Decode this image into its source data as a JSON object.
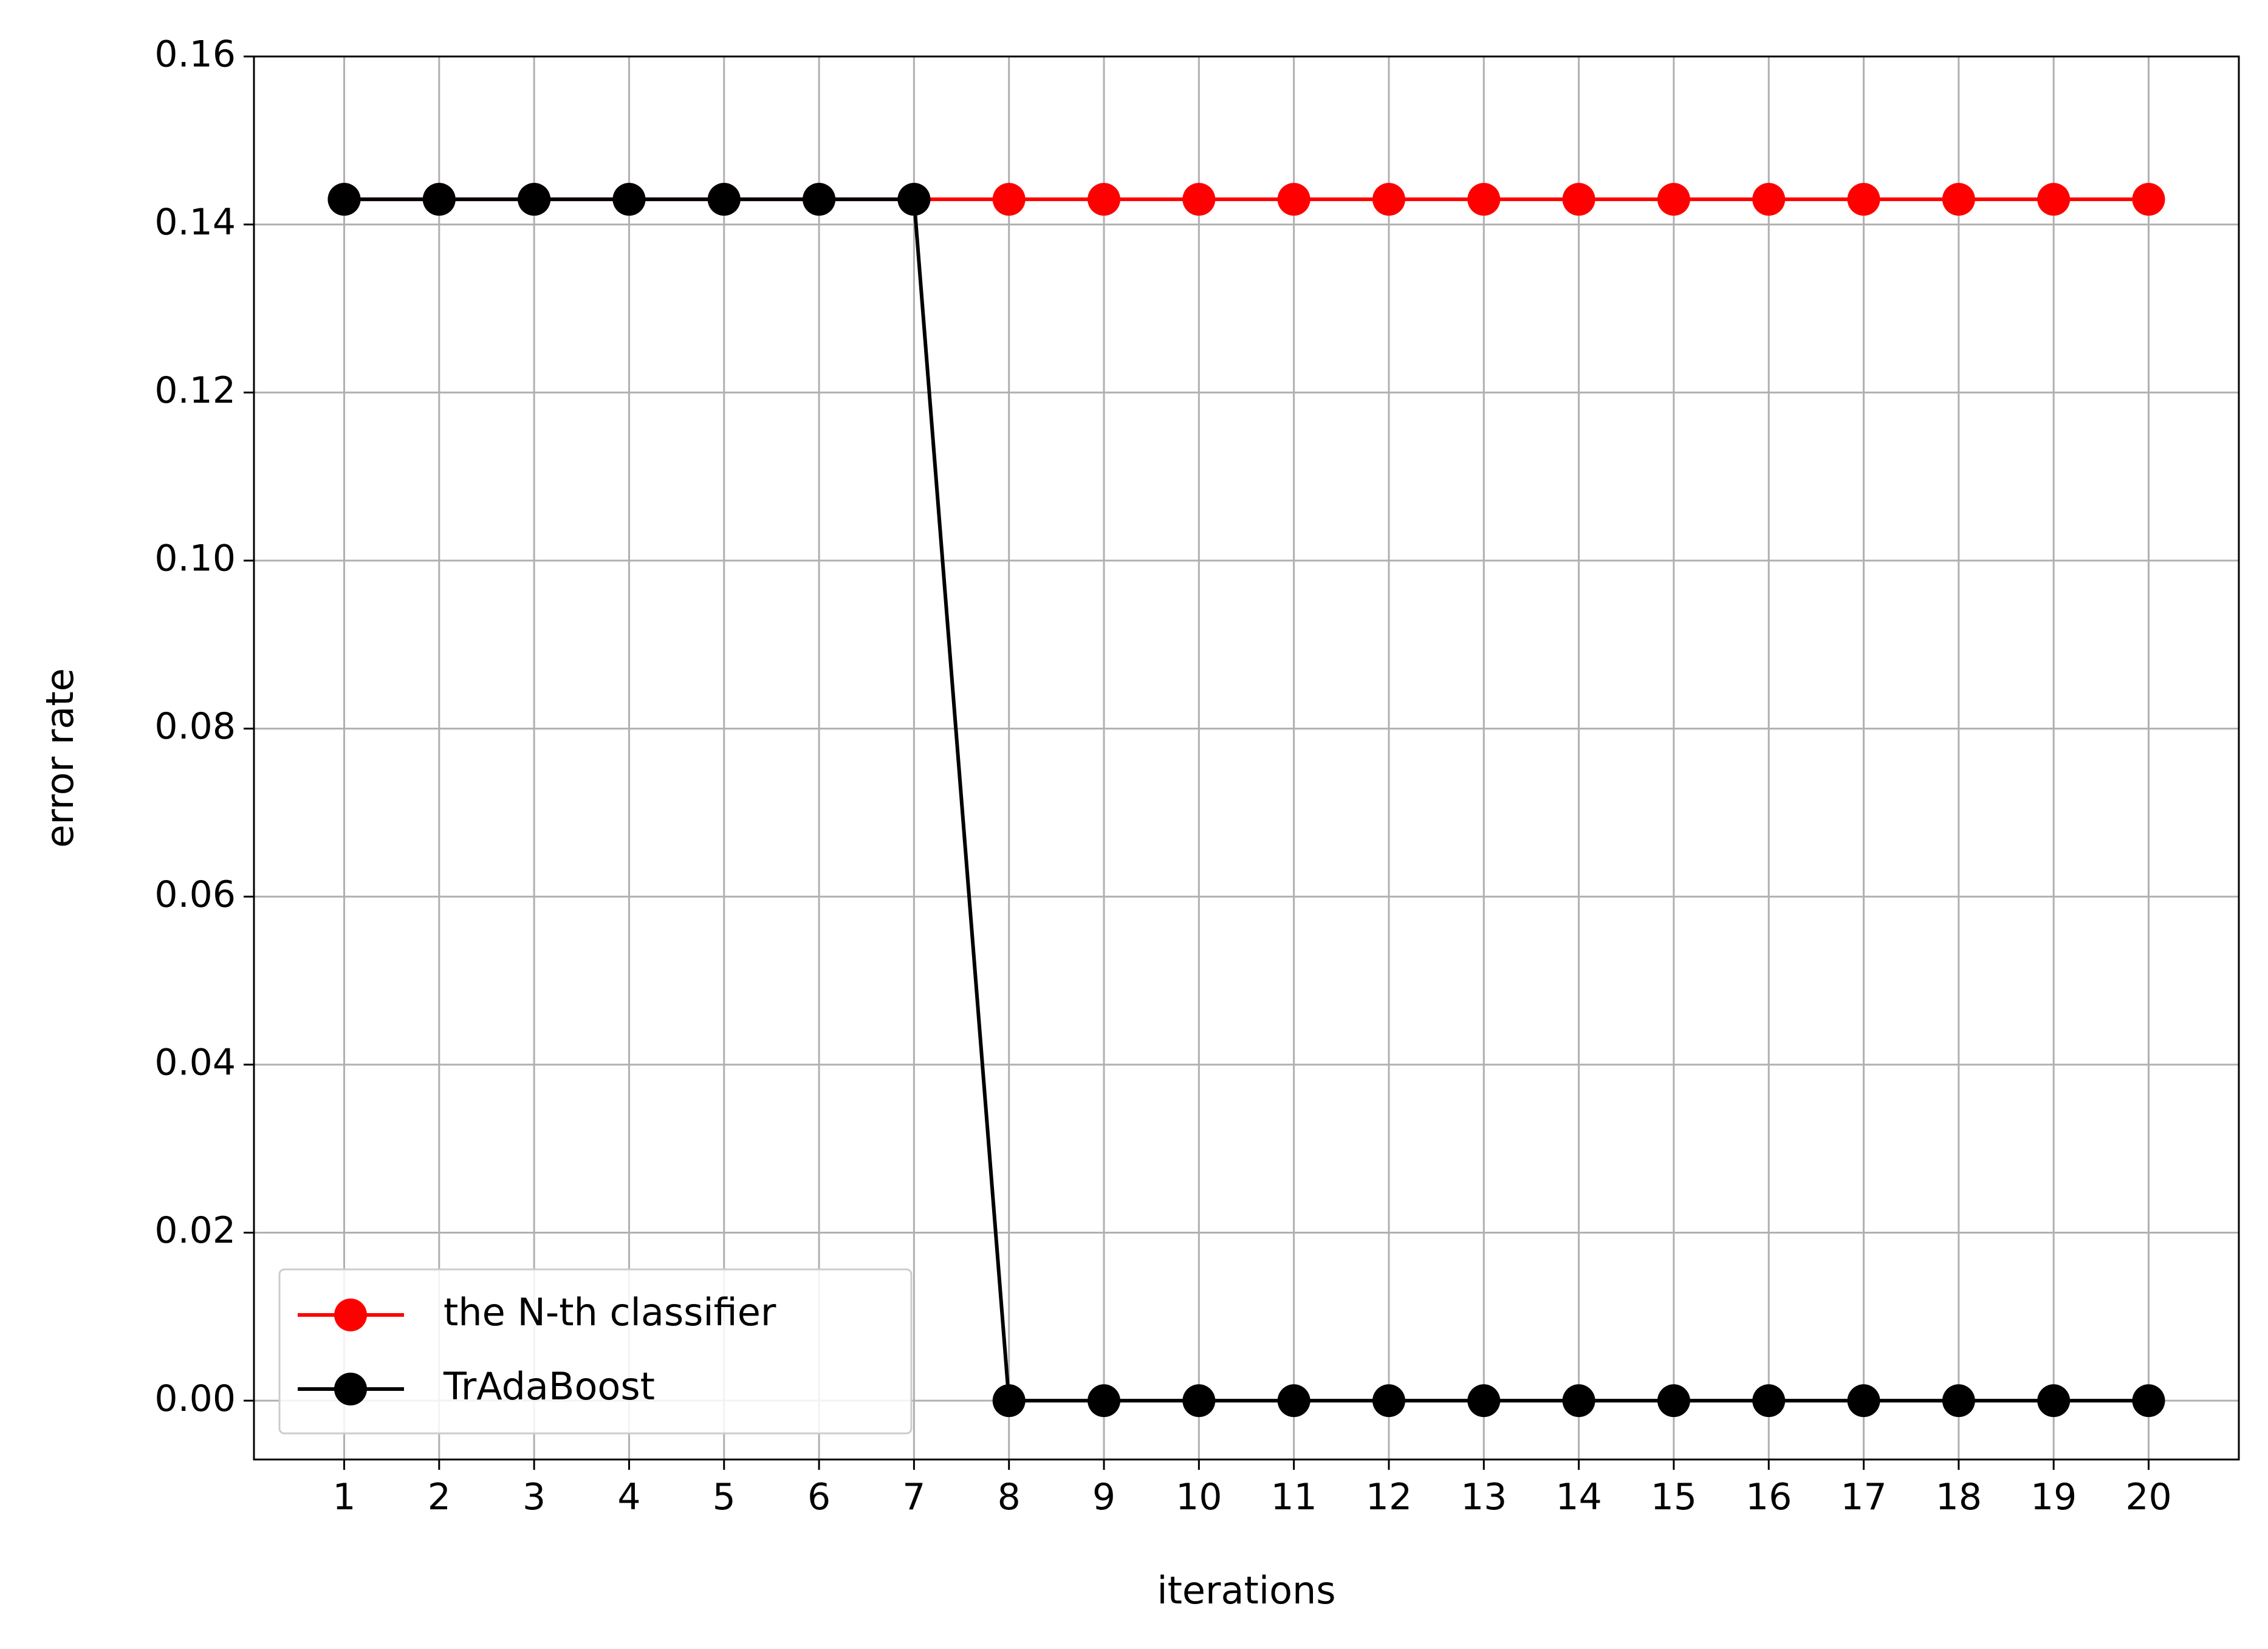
{
  "chart_data": {
    "type": "line",
    "title": "",
    "xlabel": "iterations",
    "ylabel": "error rate",
    "x": [
      1,
      2,
      3,
      4,
      5,
      6,
      7,
      8,
      9,
      10,
      11,
      12,
      13,
      14,
      15,
      16,
      17,
      18,
      19,
      20
    ],
    "x_tick_labels": [
      "1",
      "2",
      "3",
      "4",
      "5",
      "6",
      "7",
      "8",
      "9",
      "10",
      "11",
      "12",
      "13",
      "14",
      "15",
      "16",
      "17",
      "18",
      "19",
      "20"
    ],
    "y_ticks": [
      0.0,
      0.02,
      0.04,
      0.06,
      0.08,
      0.1,
      0.12,
      0.14,
      0.16
    ],
    "y_tick_labels": [
      "0.00",
      "0.02",
      "0.04",
      "0.06",
      "0.08",
      "0.10",
      "0.12",
      "0.14",
      "0.16"
    ],
    "xlim": [
      0.05,
      20.95
    ],
    "ylim": [
      -0.007,
      0.16
    ],
    "grid": true,
    "legend_position": "lower-left",
    "series": [
      {
        "name": "the N-th classifier",
        "color": "#ff0000",
        "marker": "circle",
        "values": [
          0.143,
          0.143,
          0.143,
          0.143,
          0.143,
          0.143,
          0.143,
          0.143,
          0.143,
          0.143,
          0.143,
          0.143,
          0.143,
          0.143,
          0.143,
          0.143,
          0.143,
          0.143,
          0.143,
          0.143
        ]
      },
      {
        "name": "TrAdaBoost",
        "color": "#000000",
        "marker": "circle",
        "values": [
          0.143,
          0.143,
          0.143,
          0.143,
          0.143,
          0.143,
          0.143,
          0.0,
          0.0,
          0.0,
          0.0,
          0.0,
          0.0,
          0.0,
          0.0,
          0.0,
          0.0,
          0.0,
          0.0,
          0.0
        ]
      }
    ]
  }
}
